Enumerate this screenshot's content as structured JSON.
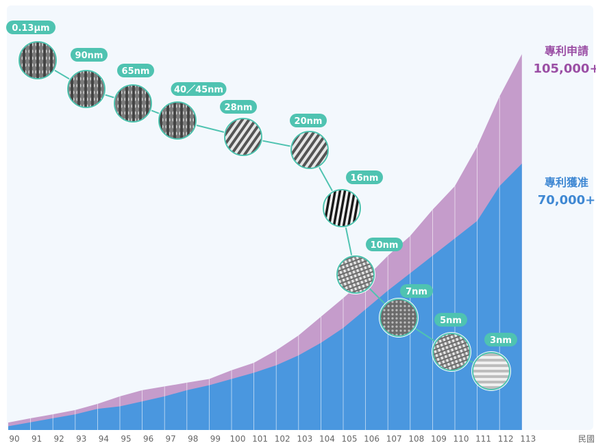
{
  "chart_data": {
    "type": "area",
    "x": [
      "90",
      "91",
      "92",
      "93",
      "94",
      "95",
      "96",
      "97",
      "98",
      "99",
      "100",
      "101",
      "102",
      "103",
      "104",
      "105",
      "106",
      "107",
      "108",
      "109",
      "110",
      "111",
      "112",
      "113"
    ],
    "x_unit": "民國",
    "series": [
      {
        "name": "專利申請",
        "total_label": "105,000+",
        "color": "#c59ccb",
        "values": [
          3000,
          4700,
          6300,
          8000,
          10500,
          13500,
          16000,
          17500,
          19000,
          20500,
          24000,
          27000,
          32000,
          38000,
          45500,
          53000,
          61000,
          70000,
          78000,
          88500,
          98000,
          114000,
          134000,
          151000
        ]
      },
      {
        "name": "專利獲准",
        "total_label": "70,000+",
        "color": "#4a97df",
        "values": [
          1500,
          3100,
          4700,
          6300,
          8500,
          9500,
          11500,
          13500,
          16000,
          18000,
          20500,
          23000,
          26000,
          30000,
          35000,
          41000,
          48500,
          56000,
          63000,
          70000,
          77000,
          84000,
          98000,
          107000
        ]
      }
    ],
    "ylim": [
      0,
      170000
    ],
    "process_nodes": [
      "0.13μm",
      "90nm",
      "65nm",
      "40／45nm",
      "28nm",
      "20nm",
      "16nm",
      "10nm",
      "7nm",
      "5nm",
      "3nm"
    ],
    "colors": {
      "node_label_bg": "#4fc3b1",
      "background": "#f3f8fd",
      "tick_text": "#666666"
    }
  }
}
